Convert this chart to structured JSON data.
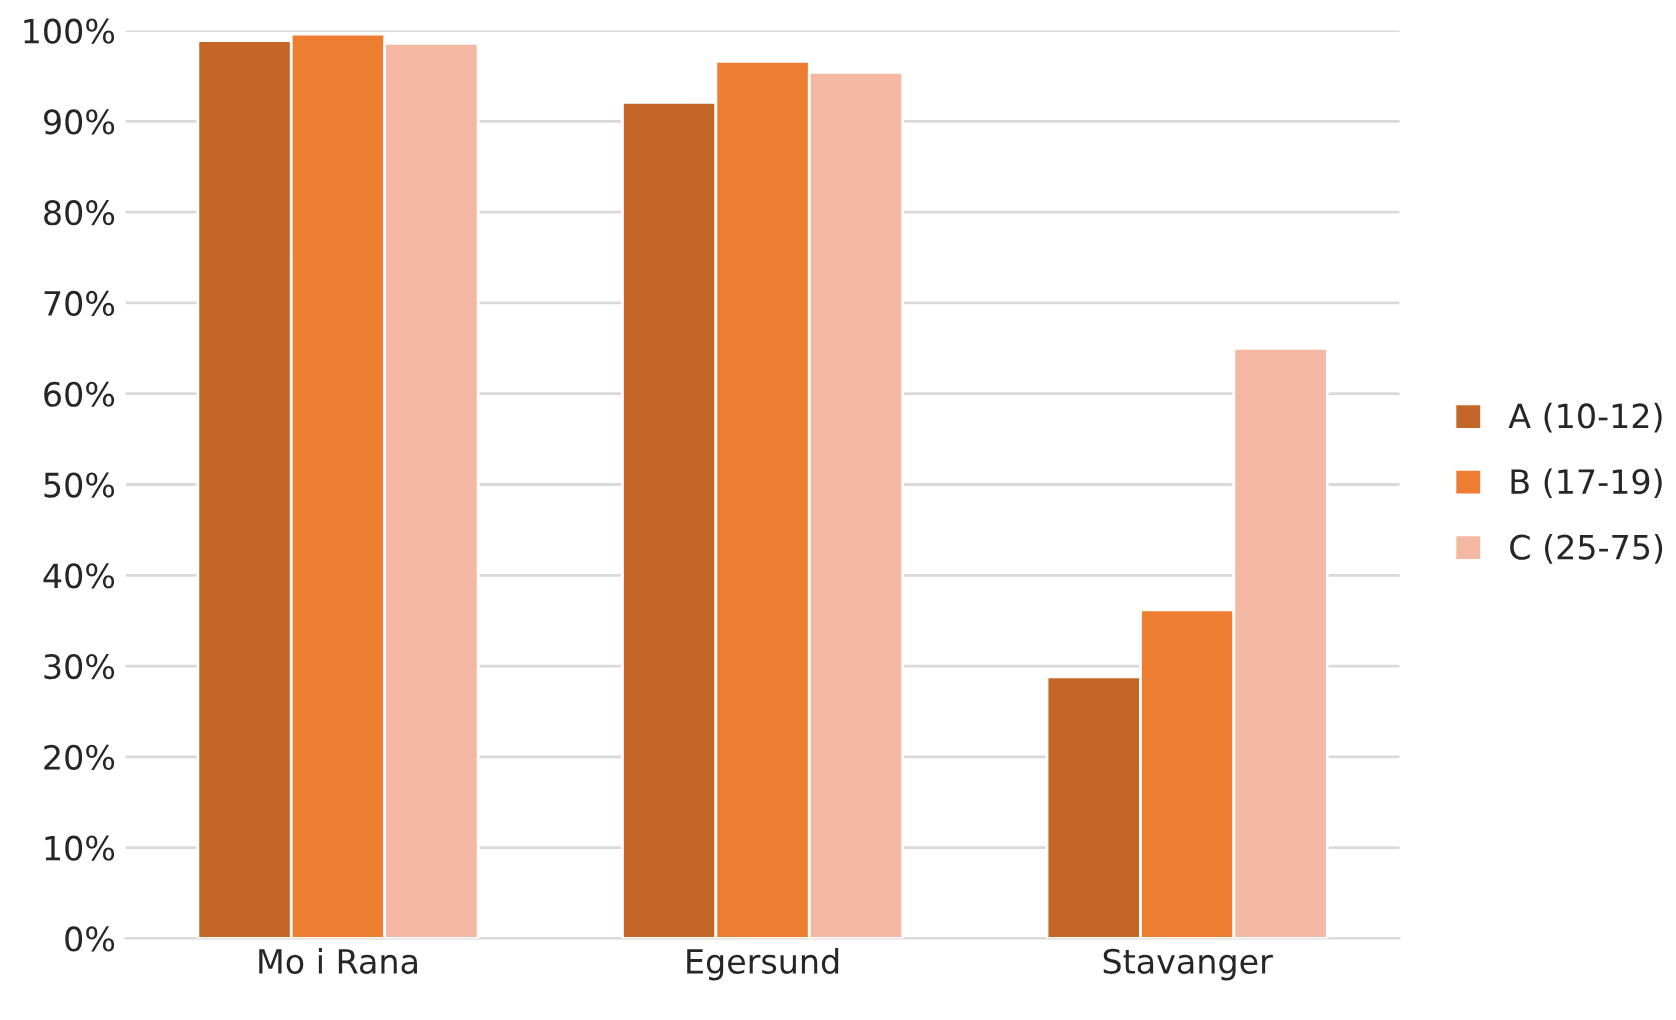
{
  "chart_data": {
    "type": "bar",
    "categories": [
      "Mo i Rana",
      "Egersund",
      "Stavanger"
    ],
    "series": [
      {
        "name": "A (10-12)",
        "color": "#c46628",
        "values": [
          98.9,
          92.1,
          28.8
        ]
      },
      {
        "name": "B (17-19)",
        "color": "#ed7d31",
        "values": [
          99.6,
          96.6,
          36.2
        ]
      },
      {
        "name": "C (25-75)",
        "color": "#f4b7a1",
        "values": [
          98.6,
          95.4,
          65.0
        ]
      }
    ],
    "ylim": [
      0,
      100
    ],
    "yticks": [
      {
        "value": 0,
        "label": "0%"
      },
      {
        "value": 10,
        "label": "10%"
      },
      {
        "value": 20,
        "label": "20%"
      },
      {
        "value": 30,
        "label": "30%"
      },
      {
        "value": 40,
        "label": "40%"
      },
      {
        "value": 50,
        "label": "50%"
      },
      {
        "value": 60,
        "label": "60%"
      },
      {
        "value": 70,
        "label": "70%"
      },
      {
        "value": 80,
        "label": "80%"
      },
      {
        "value": 90,
        "label": "90%"
      },
      {
        "value": 100,
        "label": "100%"
      }
    ],
    "grid": "y",
    "legend": "right"
  }
}
